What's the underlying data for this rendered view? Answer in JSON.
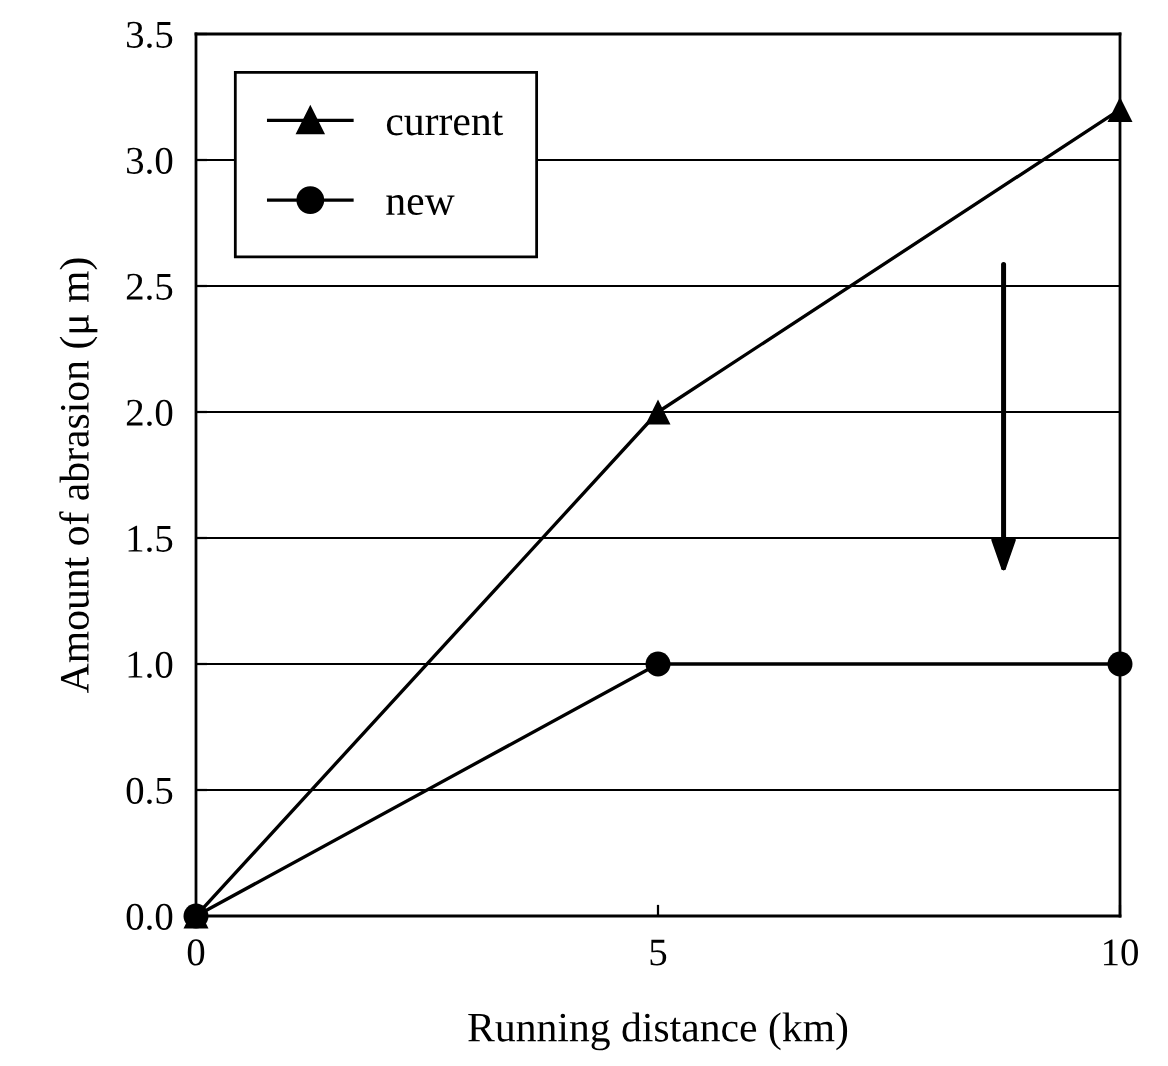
{
  "chart_data": {
    "type": "line",
    "xlabel": "Running distance (km)",
    "ylabel": "Amount of abrasion (μ m)",
    "x": [
      0,
      5,
      10
    ],
    "series": [
      {
        "name": "current",
        "color": "#000000",
        "marker": "triangle",
        "values": [
          0,
          2.0,
          3.2
        ]
      },
      {
        "name": "new",
        "color": "#000000",
        "marker": "circle",
        "values": [
          0,
          1.0,
          1.0
        ]
      }
    ],
    "xlim": [
      0,
      10
    ],
    "xticks": [
      0,
      5,
      10
    ],
    "ylim": [
      0,
      3.5
    ],
    "yticks": [
      {
        "value": 0,
        "label": "0.0"
      },
      {
        "value": 0.5,
        "label": "0.5"
      },
      {
        "value": 1,
        "label": "1.0"
      },
      {
        "value": 1.5,
        "label": "1.5"
      },
      {
        "value": 2,
        "label": "2.0"
      },
      {
        "value": 2.5,
        "label": "2.5"
      },
      {
        "value": 3,
        "label": "3.0"
      },
      {
        "value": 3.5,
        "label": "3.5"
      }
    ],
    "grid": "y",
    "legend": "top left",
    "line_style": "solid"
  }
}
